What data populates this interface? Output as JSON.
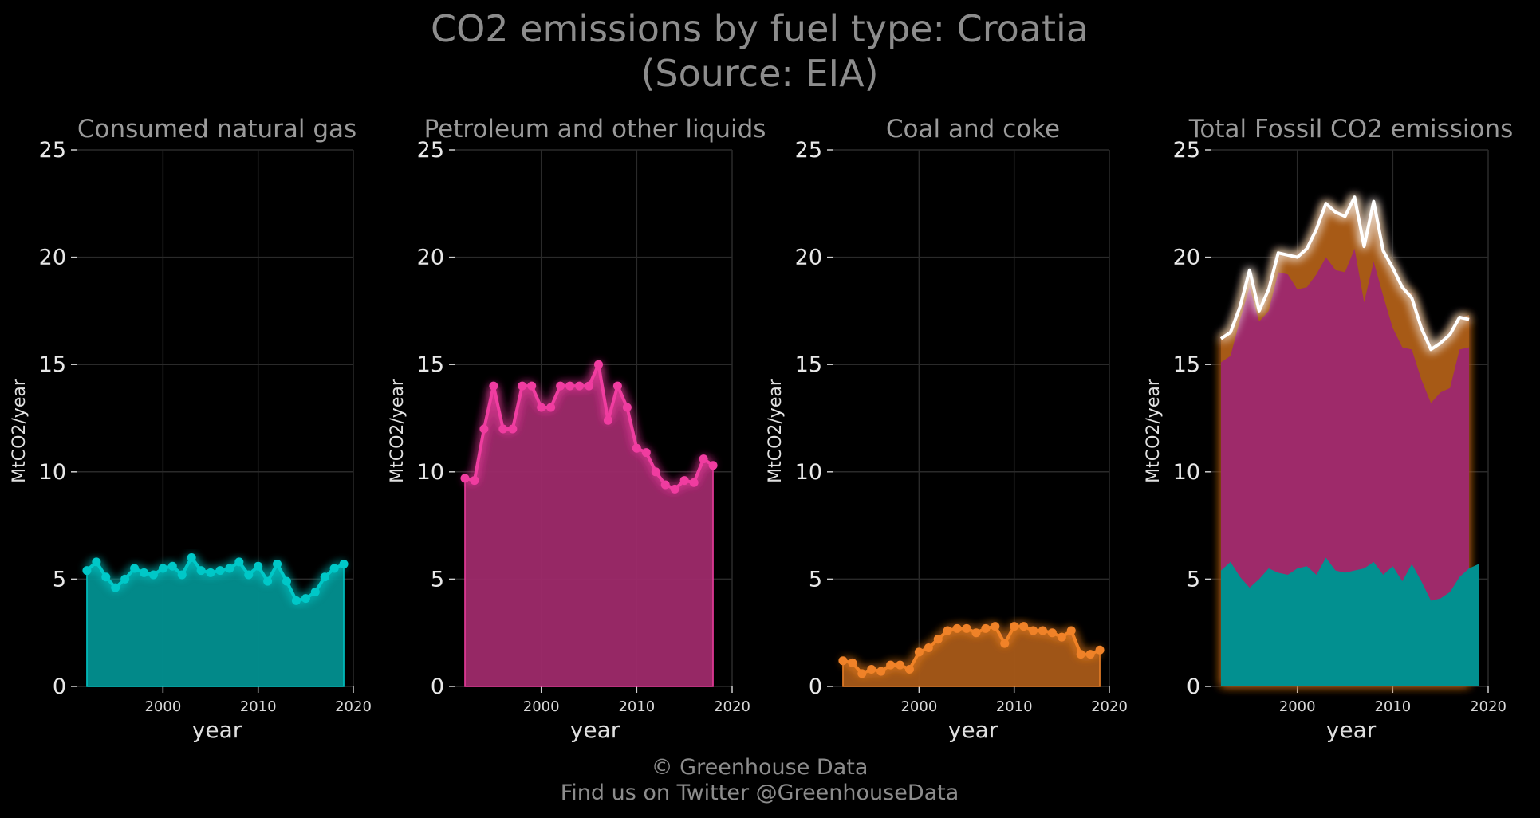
{
  "title_line1": "CO2 emissions by fuel type: Croatia",
  "title_line2": "(Source: EIA)",
  "footer_line1": "© Greenhouse Data",
  "footer_line2": "Find us on Twitter @GreenhouseData",
  "colors": {
    "gas": "#00c8c8",
    "gas_fill": "#029090",
    "petroleum": "#f03ca0",
    "petroleum_fill": "#9e2a6a",
    "coal": "#f08228",
    "coal_fill": "#a85a18",
    "total": "#ffffff",
    "grid": "#2a2a2a"
  },
  "chart_data": [
    {
      "type": "area",
      "title": "Consumed natural gas",
      "xlabel": "year",
      "ylabel": "MtCO2/year",
      "xlim": [
        1991,
        2020
      ],
      "ylim": [
        0,
        25
      ],
      "xticks": [
        2000,
        2010,
        2020
      ],
      "yticks": [
        0,
        5,
        10,
        15,
        20,
        25
      ],
      "x": [
        1992,
        1993,
        1994,
        1995,
        1996,
        1997,
        1998,
        1999,
        2000,
        2001,
        2002,
        2003,
        2004,
        2005,
        2006,
        2007,
        2008,
        2009,
        2010,
        2011,
        2012,
        2013,
        2014,
        2015,
        2016,
        2017,
        2018,
        2019
      ],
      "series": [
        {
          "values": [
            5.4,
            5.8,
            5.1,
            4.6,
            5.0,
            5.5,
            5.3,
            5.2,
            5.5,
            5.6,
            5.2,
            6.0,
            5.4,
            5.3,
            5.4,
            5.5,
            5.8,
            5.2,
            5.6,
            4.9,
            5.7,
            4.9,
            4.0,
            4.1,
            4.4,
            5.1,
            5.5,
            5.7
          ]
        }
      ]
    },
    {
      "type": "area",
      "title": "Petroleum and other liquids",
      "xlabel": "year",
      "ylabel": "MtCO2/year",
      "xlim": [
        1991,
        2020
      ],
      "ylim": [
        0,
        25
      ],
      "xticks": [
        2000,
        2010,
        2020
      ],
      "yticks": [
        0,
        5,
        10,
        15,
        20,
        25
      ],
      "x": [
        1992,
        1993,
        1994,
        1995,
        1996,
        1997,
        1998,
        1999,
        2000,
        2001,
        2002,
        2003,
        2004,
        2005,
        2006,
        2007,
        2008,
        2009,
        2010,
        2011,
        2012,
        2013,
        2014,
        2015,
        2016,
        2017,
        2018
      ],
      "series": [
        {
          "values": [
            9.7,
            9.6,
            12.0,
            14.0,
            12.0,
            12.0,
            14.0,
            14.0,
            13.0,
            13.0,
            14.0,
            14.0,
            14.0,
            14.0,
            15.0,
            12.4,
            14.0,
            13.0,
            11.1,
            10.9,
            10.0,
            9.4,
            9.2,
            9.6,
            9.5,
            10.6,
            10.3
          ]
        }
      ]
    },
    {
      "type": "area",
      "title": "Coal and coke",
      "xlabel": "year",
      "ylabel": "MtCO2/year",
      "xlim": [
        1991,
        2020
      ],
      "ylim": [
        0,
        25
      ],
      "xticks": [
        2000,
        2010,
        2020
      ],
      "yticks": [
        0,
        5,
        10,
        15,
        20,
        25
      ],
      "x": [
        1992,
        1993,
        1994,
        1995,
        1996,
        1997,
        1998,
        1999,
        2000,
        2001,
        2002,
        2003,
        2004,
        2005,
        2006,
        2007,
        2008,
        2009,
        2010,
        2011,
        2012,
        2013,
        2014,
        2015,
        2016,
        2017,
        2018,
        2019
      ],
      "series": [
        {
          "values": [
            1.2,
            1.1,
            0.6,
            0.8,
            0.7,
            1.0,
            1.0,
            0.8,
            1.6,
            1.8,
            2.2,
            2.6,
            2.7,
            2.7,
            2.5,
            2.7,
            2.8,
            2.0,
            2.8,
            2.8,
            2.6,
            2.6,
            2.5,
            2.3,
            2.6,
            1.5,
            1.5,
            1.7
          ]
        }
      ]
    },
    {
      "type": "area",
      "title": "Total Fossil CO2 emissions",
      "xlabel": "year",
      "ylabel": "MtCO2/year",
      "xlim": [
        1991,
        2020
      ],
      "ylim": [
        0,
        25
      ],
      "xticks": [
        2000,
        2010,
        2020
      ],
      "yticks": [
        0,
        5,
        10,
        15,
        20,
        25
      ],
      "stacked": true,
      "total": {
        "x": [
          1992,
          1993,
          1994,
          1995,
          1996,
          1997,
          1998,
          1999,
          2000,
          2001,
          2002,
          2003,
          2004,
          2005,
          2006,
          2007,
          2008,
          2009,
          2010,
          2011,
          2012,
          2013,
          2014,
          2015,
          2016,
          2017,
          2018
        ],
        "values": [
          16.2,
          16.5,
          17.7,
          19.4,
          17.5,
          18.5,
          20.2,
          20.1,
          20.0,
          20.4,
          21.3,
          22.5,
          22.1,
          21.9,
          22.8,
          20.5,
          22.6,
          20.3,
          19.5,
          18.6,
          18.1,
          16.7,
          15.7,
          16.0,
          16.4,
          17.2,
          17.1
        ]
      }
    }
  ]
}
